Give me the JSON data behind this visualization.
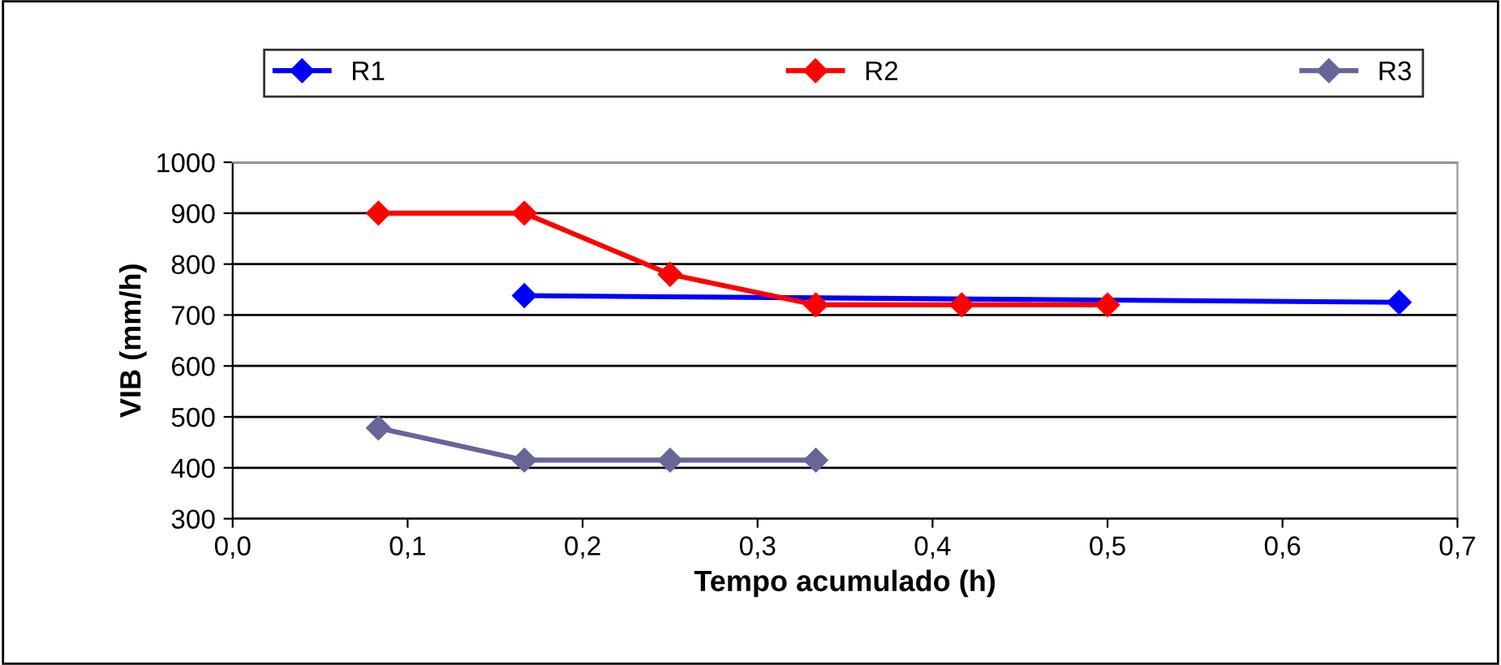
{
  "chart_data": {
    "type": "line",
    "xlabel": "Tempo acumulado (h)",
    "ylabel": "VIB (mm/h)",
    "series": [
      {
        "name": "R1",
        "color": "#0000ff",
        "x": [
          0.1667,
          0.6667
        ],
        "values": [
          738,
          725
        ]
      },
      {
        "name": "R2",
        "color": "#ff0000",
        "x": [
          0.0833,
          0.1667,
          0.25,
          0.3333,
          0.4167,
          0.5
        ],
        "values": [
          900,
          900,
          780,
          720,
          720,
          720
        ]
      },
      {
        "name": "R3",
        "color": "#666699",
        "x": [
          0.0833,
          0.1667,
          0.25,
          0.3333
        ],
        "values": [
          478,
          415,
          415,
          415
        ]
      }
    ],
    "xlim": [
      0,
      0.7
    ],
    "xticks": [
      {
        "value": 0,
        "label": "0,0"
      },
      {
        "value": 0.1,
        "label": "0,1"
      },
      {
        "value": 0.2,
        "label": "0,2"
      },
      {
        "value": 0.3,
        "label": "0,3"
      },
      {
        "value": 0.4,
        "label": "0,4"
      },
      {
        "value": 0.5,
        "label": "0,5"
      },
      {
        "value": 0.6,
        "label": "0,6"
      },
      {
        "value": 0.7,
        "label": "0,7"
      }
    ],
    "ylim": [
      300,
      1000
    ],
    "yticks": [
      300,
      400,
      500,
      600,
      700,
      800,
      900,
      1000
    ],
    "grid": "y",
    "legend": "top",
    "marker": "diamond",
    "line_style": "solid"
  }
}
